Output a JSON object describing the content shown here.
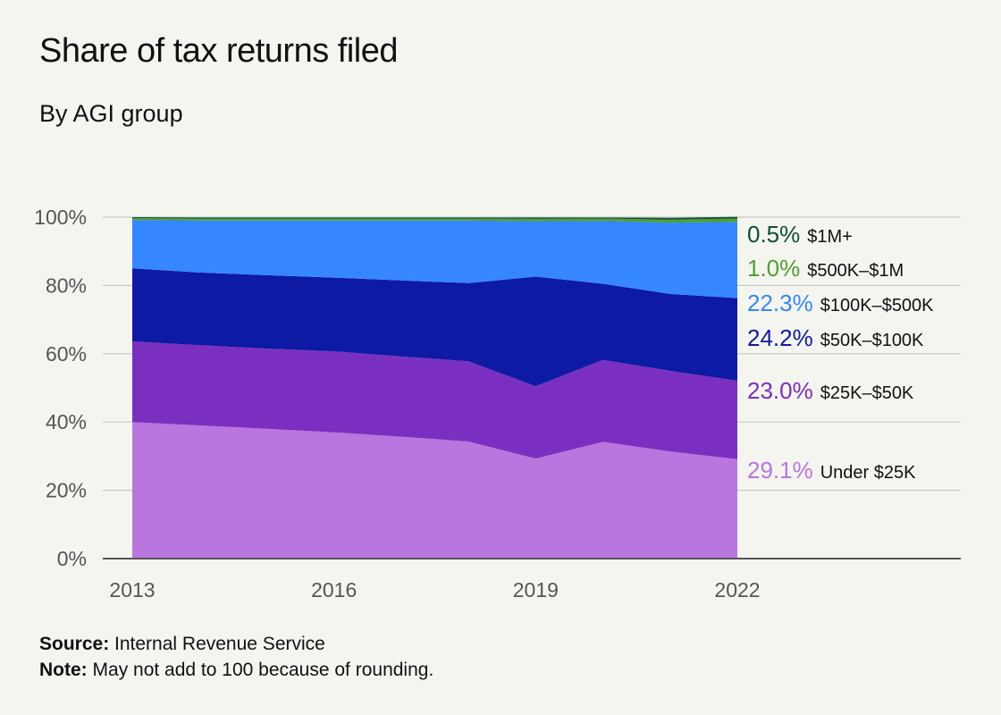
{
  "header": {
    "title": "Share of tax returns filed",
    "subtitle": "By AGI group"
  },
  "footer": {
    "source_label": "Source:",
    "source_text": "Internal Revenue Service",
    "note_label": "Note:",
    "note_text": "May not add to 100 because of rounding."
  },
  "chart_data": {
    "type": "area",
    "stacked": true,
    "title": "Share of tax returns filed",
    "subtitle": "By AGI group",
    "x": [
      2013,
      2014,
      2015,
      2016,
      2017,
      2018,
      2019,
      2020,
      2021,
      2022
    ],
    "x_tick_labels": [
      "2013",
      "2016",
      "2019",
      "2022"
    ],
    "y_tick_labels": [
      "0%",
      "20%",
      "40%",
      "60%",
      "80%",
      "100%"
    ],
    "ylim": [
      0,
      100
    ],
    "grid": true,
    "legend": "direct labels at right end",
    "series": [
      {
        "name": "Under $25K",
        "end_label": "29.1%",
        "color": "#b876de",
        "values": [
          40.0,
          39.0,
          38.0,
          37.0,
          35.7,
          34.3,
          29.3,
          34.2,
          31.4,
          29.1
        ]
      },
      {
        "name": "$25K–$50K",
        "end_label": "23.0%",
        "color": "#7b2fc0",
        "values": [
          23.6,
          23.5,
          23.5,
          23.7,
          23.5,
          23.5,
          21.2,
          24.0,
          23.6,
          23.0
        ]
      },
      {
        "name": "$50K–$100K",
        "end_label": "24.2%",
        "color": "#0d1aa3",
        "values": [
          21.4,
          21.3,
          21.5,
          21.6,
          22.3,
          22.9,
          32.1,
          22.3,
          22.5,
          24.2
        ]
      },
      {
        "name": "$100K–$500K",
        "end_label": "22.3%",
        "color": "#3586ff",
        "values": [
          14.2,
          15.2,
          16.0,
          16.7,
          17.5,
          18.3,
          16.2,
          18.4,
          20.9,
          22.3
        ]
      },
      {
        "name": "$500K–$1M",
        "end_label": "1.0%",
        "color": "#4da12e",
        "values": [
          0.5,
          0.6,
          0.6,
          0.6,
          0.6,
          0.6,
          0.7,
          0.7,
          0.9,
          1.0
        ]
      },
      {
        "name": "$1M+",
        "end_label": "0.5%",
        "color": "#0e4d3a",
        "values": [
          0.3,
          0.3,
          0.3,
          0.3,
          0.3,
          0.3,
          0.4,
          0.3,
          0.5,
          0.5
        ]
      }
    ]
  }
}
